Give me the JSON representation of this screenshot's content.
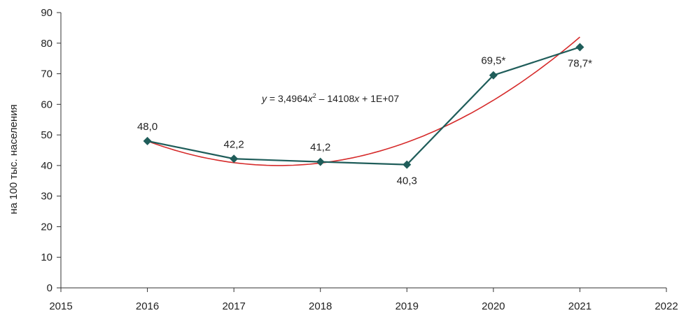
{
  "chart_data": {
    "type": "line",
    "ylabel": "на 100 тыс. населения",
    "xlabel": "",
    "title": "",
    "xlim": [
      2015,
      2022
    ],
    "ylim": [
      0,
      90
    ],
    "x_ticks": [
      2015,
      2016,
      2017,
      2018,
      2019,
      2020,
      2021,
      2022
    ],
    "y_ticks": [
      0,
      10,
      20,
      30,
      40,
      50,
      60,
      70,
      80,
      90
    ],
    "grid": false,
    "legend": "none",
    "series": [
      {
        "color": "#1f5d5a",
        "marker": "diamond",
        "points": [
          {
            "x": 2016,
            "y": 48.0,
            "label": "48,0",
            "label_pos": "above"
          },
          {
            "x": 2017,
            "y": 42.2,
            "label": "42,2",
            "label_pos": "above"
          },
          {
            "x": 2018,
            "y": 41.2,
            "label": "41,2",
            "label_pos": "above"
          },
          {
            "x": 2019,
            "y": 40.3,
            "label": "40,3",
            "label_pos": "below"
          },
          {
            "x": 2020,
            "y": 69.5,
            "label": "69,5*",
            "label_pos": "above"
          },
          {
            "x": 2021,
            "y": 78.7,
            "label": "78,7*",
            "label_pos": "below"
          }
        ]
      }
    ],
    "trendline": {
      "type": "polynomial-2",
      "color": "#d62b2b",
      "x_range": [
        2016,
        2021
      ],
      "fit_points": [
        {
          "x": 2016,
          "y": 48.0
        },
        {
          "x": 2017.5,
          "y": 40.0
        },
        {
          "x": 2021,
          "y": 82.0
        }
      ],
      "equation": {
        "prefix": "y",
        "eq": " = 3,4964",
        "var1": "x",
        "sup": "2",
        "mid": " – 14108",
        "var2": "x",
        "tail": " + 1E+07"
      }
    }
  }
}
